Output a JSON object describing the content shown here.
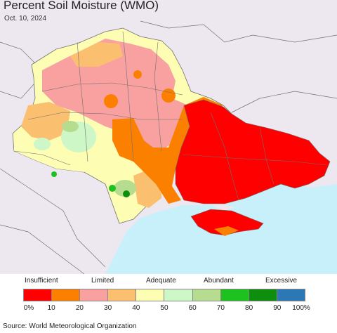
{
  "title": "Percent Soil Moisture (WMO)",
  "date": "Oct. 10, 2024",
  "colors": {
    "sea": "#c8f0fb",
    "land_outside": "#ede8ef",
    "border": "#707070",
    "c0": "#ff0000",
    "c10": "#fb8000",
    "c20": "#f9a1a1",
    "c30": "#fbbf70",
    "c40": "#fefdb4",
    "c50": "#cef7c8",
    "c60": "#b5dc8f",
    "c70": "#1ec21e",
    "c80": "#0d8e0d",
    "c90": "#2b78b4"
  },
  "legend": {
    "categories": [
      {
        "label": "Insufficient"
      },
      {
        "label": "Limited"
      },
      {
        "label": "Adequate"
      },
      {
        "label": "Abundant"
      },
      {
        "label": "Excessive"
      }
    ],
    "swatches": [
      "#ff0000",
      "#fb8000",
      "#f9a1a1",
      "#fbbf70",
      "#fefdb4",
      "#cef7c8",
      "#b5dc8f",
      "#1ec21e",
      "#0d8e0d",
      "#2b78b4"
    ],
    "ticks": [
      "0%",
      "10",
      "20",
      "30",
      "40",
      "50",
      "60",
      "70",
      "80",
      "90",
      "100%"
    ]
  },
  "source": "Source: World Meteorological Organization"
}
